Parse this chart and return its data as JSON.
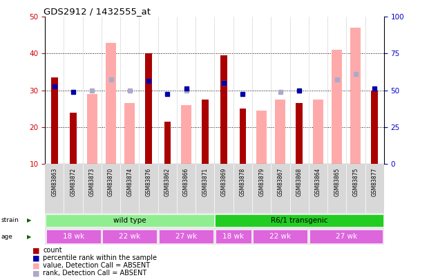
{
  "title": "GDS2912 / 1432555_at",
  "samples": [
    "GSM83863",
    "GSM83872",
    "GSM83873",
    "GSM83870",
    "GSM83874",
    "GSM83876",
    "GSM83862",
    "GSM83866",
    "GSM83871",
    "GSM83869",
    "GSM83878",
    "GSM83879",
    "GSM83867",
    "GSM83868",
    "GSM83864",
    "GSM83865",
    "GSM83875",
    "GSM83877"
  ],
  "count_values": [
    33.5,
    24.0,
    null,
    null,
    null,
    40.0,
    21.5,
    null,
    27.5,
    39.5,
    25.0,
    null,
    null,
    26.5,
    null,
    null,
    null,
    30.0
  ],
  "absent_count_values": [
    null,
    null,
    29.0,
    43.0,
    26.5,
    null,
    null,
    26.0,
    null,
    null,
    null,
    24.5,
    27.5,
    null,
    27.5,
    41.0,
    47.0,
    null
  ],
  "absent_rank_values": [
    null,
    null,
    30.0,
    33.0,
    30.0,
    null,
    null,
    30.0,
    null,
    32.0,
    null,
    null,
    29.5,
    30.0,
    null,
    33.0,
    34.5,
    null
  ],
  "blue_sq_values": [
    31.0,
    29.5,
    null,
    null,
    null,
    32.5,
    29.0,
    30.5,
    null,
    32.0,
    29.0,
    null,
    null,
    30.0,
    null,
    null,
    null,
    30.5
  ],
  "ylim": [
    10,
    50
  ],
  "yticks_left": [
    10,
    20,
    30,
    40,
    50
  ],
  "yticks_right": [
    0,
    25,
    50,
    75,
    100
  ],
  "strain_labels": [
    {
      "label": "wild type",
      "start": 0,
      "end": 9,
      "color": "#90ee90"
    },
    {
      "label": "R6/1 transgenic",
      "start": 9,
      "end": 18,
      "color": "#22cc22"
    }
  ],
  "age_labels": [
    {
      "label": "18 wk",
      "start": 0,
      "end": 3,
      "color": "#dd66dd"
    },
    {
      "label": "22 wk",
      "start": 3,
      "end": 6,
      "color": "#dd66dd"
    },
    {
      "label": "27 wk",
      "start": 6,
      "end": 9,
      "color": "#dd66dd"
    },
    {
      "label": "18 wk",
      "start": 9,
      "end": 11,
      "color": "#dd66dd"
    },
    {
      "label": "22 wk",
      "start": 11,
      "end": 14,
      "color": "#dd66dd"
    },
    {
      "label": "27 wk",
      "start": 14,
      "end": 18,
      "color": "#dd66dd"
    }
  ],
  "count_color": "#aa0000",
  "absent_count_color": "#ffaaaa",
  "absent_rank_color": "#aaaacc",
  "blue_sq_color": "#0000aa",
  "tick_color_left": "#cc0000",
  "tick_color_right": "#0000cc",
  "legend_items": [
    {
      "label": "count",
      "color": "#aa0000"
    },
    {
      "label": "percentile rank within the sample",
      "color": "#0000aa"
    },
    {
      "label": "value, Detection Call = ABSENT",
      "color": "#ffaaaa"
    },
    {
      "label": "rank, Detection Call = ABSENT",
      "color": "#aaaacc"
    }
  ]
}
